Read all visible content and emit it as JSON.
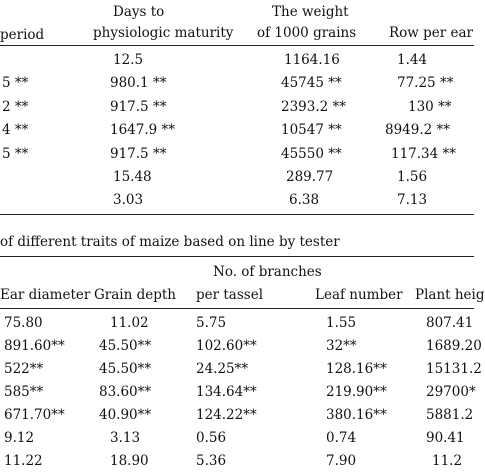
{
  "table1": {
    "headers": {
      "period": "period",
      "days_line1": "Days to",
      "days_line2": "physiologic maturity",
      "weight_line1": "The weight",
      "weight_line2": "of 1000 grains",
      "row": "Row per ear"
    },
    "rows": [
      {
        "a": "",
        "b": "12.5",
        "c": "1164.16",
        "d": "1.44"
      },
      {
        "a": "5 **",
        "b": "980.1 **",
        "c": "45745 **",
        "d": "77.25 **"
      },
      {
        "a": "2 **",
        "b": "917.5 **",
        "c": "2393.2 **",
        "d": "130 **"
      },
      {
        "a": "4 **",
        "b": "1647.9 **",
        "c": "10547 **",
        "d": "8949.2 **"
      },
      {
        "a": "5 **",
        "b": "917.5 **",
        "c": "45550 **",
        "d": "117.34 **"
      },
      {
        "a": "",
        "b": "15.48",
        "c": "289.77",
        "d": "1.56"
      },
      {
        "a": "",
        "b": "3.03",
        "c": "6.38",
        "d": "7.13"
      }
    ]
  },
  "caption2": "of different traits of maize based on line by tester",
  "table2": {
    "headers": {
      "ear": "Ear diameter",
      "grain": "Grain depth",
      "branches_line1": "No. of branches",
      "branches_line2": "per tassel",
      "leaf": "Leaf number",
      "plant": "Plant heig"
    },
    "rows": [
      {
        "a": "75.80",
        "b": "11.02",
        "c": "5.75",
        "d": "1.55",
        "e": "807.41"
      },
      {
        "a": "891.60**",
        "b": "45.50**",
        "c": "102.60**",
        "d": "32**",
        "e": "1689.20"
      },
      {
        "a": "522**",
        "b": "45.50**",
        "c": "24.25**",
        "d": "128.16**",
        "e": "15131.2"
      },
      {
        "a": "585**",
        "b": "83.60**",
        "c": "134.64**",
        "d": "219.90**",
        "e": "29700*"
      },
      {
        "a": "671.70**",
        "b": "40.90**",
        "c": "124.22**",
        "d": "380.16**",
        "e": "5881.2"
      },
      {
        "a": "9.12",
        "b": "3.13",
        "c": "0.56",
        "d": "0.74",
        "e": "90.41"
      },
      {
        "a": "11.22",
        "b": "18.90",
        "c": "5.36",
        "d": "7.90",
        "e": "11.2"
      }
    ]
  }
}
